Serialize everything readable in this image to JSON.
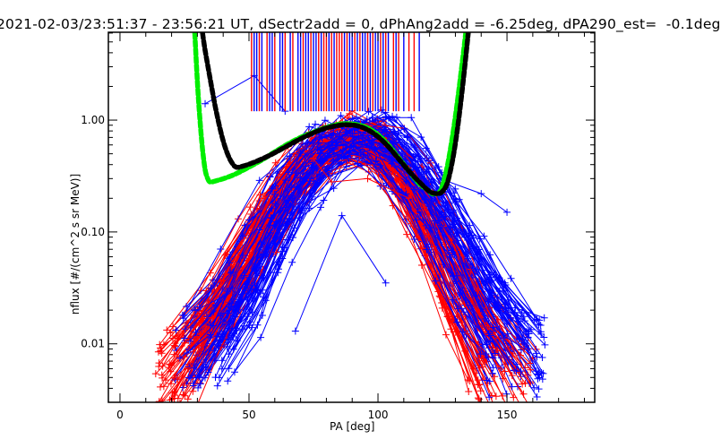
{
  "chart_data": {
    "type": "line",
    "title": "2021-02-03/23:51:37 - 23:56:21 UT, dSectr2add = 0, dPhAng2add = -6.25deg, dPA290_est=  -0.1deg",
    "xlabel": "PA [deg]",
    "ylabel": "nflux [#/(cm^2 s sr MeV)]",
    "xlim": [
      -4.5,
      184
    ],
    "ylim": [
      0.003,
      6.1
    ],
    "yscale": "log",
    "grid": false,
    "x_ticks": [
      0,
      50,
      100,
      150
    ],
    "x_tick_labels": [
      "0",
      "50",
      "100",
      "150"
    ],
    "y_ticks": [
      0.01,
      0.1,
      1.0
    ],
    "y_tick_labels": [
      "0.01",
      "0.10",
      "1.00"
    ],
    "colors": {
      "series_red": "#ff0000",
      "series_blue": "#0000ff",
      "fit_green": "#00ee00",
      "fit_black": "#000000"
    },
    "series": [
      {
        "name": "fit-green",
        "style": "thick-dashed",
        "color": "#00ee00",
        "x": [
          29,
          30,
          31,
          32,
          33,
          34,
          35,
          38,
          42,
          46,
          50,
          55,
          60,
          65,
          70,
          75,
          80,
          85,
          88,
          92,
          96,
          100,
          104,
          108,
          112,
          116,
          119,
          121,
          123,
          124,
          125,
          127,
          129,
          131,
          133,
          134
        ],
        "y": [
          6.0,
          2.2,
          1.0,
          0.55,
          0.36,
          0.3,
          0.28,
          0.29,
          0.31,
          0.34,
          0.38,
          0.44,
          0.52,
          0.61,
          0.7,
          0.78,
          0.86,
          0.92,
          0.93,
          0.91,
          0.85,
          0.74,
          0.6,
          0.46,
          0.35,
          0.27,
          0.24,
          0.22,
          0.22,
          0.23,
          0.26,
          0.4,
          0.75,
          1.6,
          3.8,
          6.0
        ]
      },
      {
        "name": "fit-black",
        "style": "thick-dashed",
        "color": "#000000",
        "x": [
          32,
          33,
          35,
          37,
          39,
          41,
          43,
          45,
          48,
          52,
          56,
          60,
          65,
          70,
          75,
          80,
          85,
          88,
          92,
          96,
          100,
          104,
          108,
          112,
          116,
          120,
          123,
          125,
          127,
          129,
          131,
          133,
          135
        ],
        "y": [
          6.0,
          4.2,
          2.3,
          1.3,
          0.8,
          0.55,
          0.43,
          0.38,
          0.39,
          0.42,
          0.46,
          0.51,
          0.59,
          0.68,
          0.77,
          0.85,
          0.9,
          0.91,
          0.89,
          0.82,
          0.71,
          0.58,
          0.45,
          0.35,
          0.28,
          0.23,
          0.22,
          0.23,
          0.28,
          0.45,
          0.9,
          2.2,
          6.0
        ]
      }
    ],
    "trace_families": [
      {
        "name": "red-traces",
        "color": "#ff0000",
        "marker": "+",
        "count": 70,
        "description": "Pitch-angle distributions, peak near PA 85-95 deg at ~0.6-1.0, falling to ~0.004-0.01 at PA 15-30 and PA 150-160",
        "peak_x_range": [
          80,
          100
        ],
        "peak_y_range": [
          0.5,
          1.0
        ],
        "low_x_range": [
          15,
          32
        ],
        "high_x_range": [
          135,
          160
        ],
        "edge_y_range": [
          0.003,
          0.012
        ]
      },
      {
        "name": "blue-traces",
        "color": "#0000ff",
        "marker": "+",
        "count": 90,
        "description": "Pitch-angle distributions, peak near PA 85-100 deg at ~0.6-1.0, falling to ~0.005-0.02 at PA 25-45 and PA 145-165",
        "peak_x_range": [
          80,
          105
        ],
        "peak_y_range": [
          0.5,
          1.0
        ],
        "low_x_range": [
          22,
          45
        ],
        "high_x_range": [
          140,
          165
        ],
        "edge_y_range": [
          0.004,
          0.02
        ]
      }
    ],
    "outlier_traces": [
      {
        "name": "blue-outlier-low",
        "color": "#0000ff",
        "x": [
          68,
          86,
          103
        ],
        "y": [
          0.013,
          0.14,
          0.035
        ]
      },
      {
        "name": "blue-outlier-high",
        "color": "#0000ff",
        "x": [
          33,
          52,
          64
        ],
        "y": [
          1.4,
          2.5,
          1.2
        ]
      },
      {
        "name": "red-outlier-mid",
        "color": "#ff0000",
        "x": [
          75,
          82,
          96,
          112
        ],
        "y": [
          0.45,
          0.28,
          0.3,
          0.2
        ]
      },
      {
        "name": "blue-outlier-right",
        "color": "#0000ff",
        "x": [
          124,
          140,
          150
        ],
        "y": [
          0.3,
          0.22,
          0.15
        ]
      }
    ],
    "vertical_markers": {
      "description": "Vertical lines from top of plot down to ~1.2 between PA ~50 and ~116",
      "y_bottom": 1.2,
      "red_x": [
        51,
        54,
        57,
        60,
        64,
        67,
        71,
        74,
        77,
        79,
        80,
        82,
        84,
        85,
        86,
        88,
        91,
        93,
        96,
        98,
        101,
        103,
        106,
        108,
        112,
        114
      ],
      "blue_x": [
        52,
        53,
        55,
        58,
        59,
        62,
        63,
        66,
        69,
        70,
        72,
        73,
        75,
        76,
        78,
        81,
        83,
        87,
        89,
        90,
        92,
        94,
        95,
        97,
        99,
        100,
        102,
        104,
        107,
        110,
        116
      ]
    }
  }
}
